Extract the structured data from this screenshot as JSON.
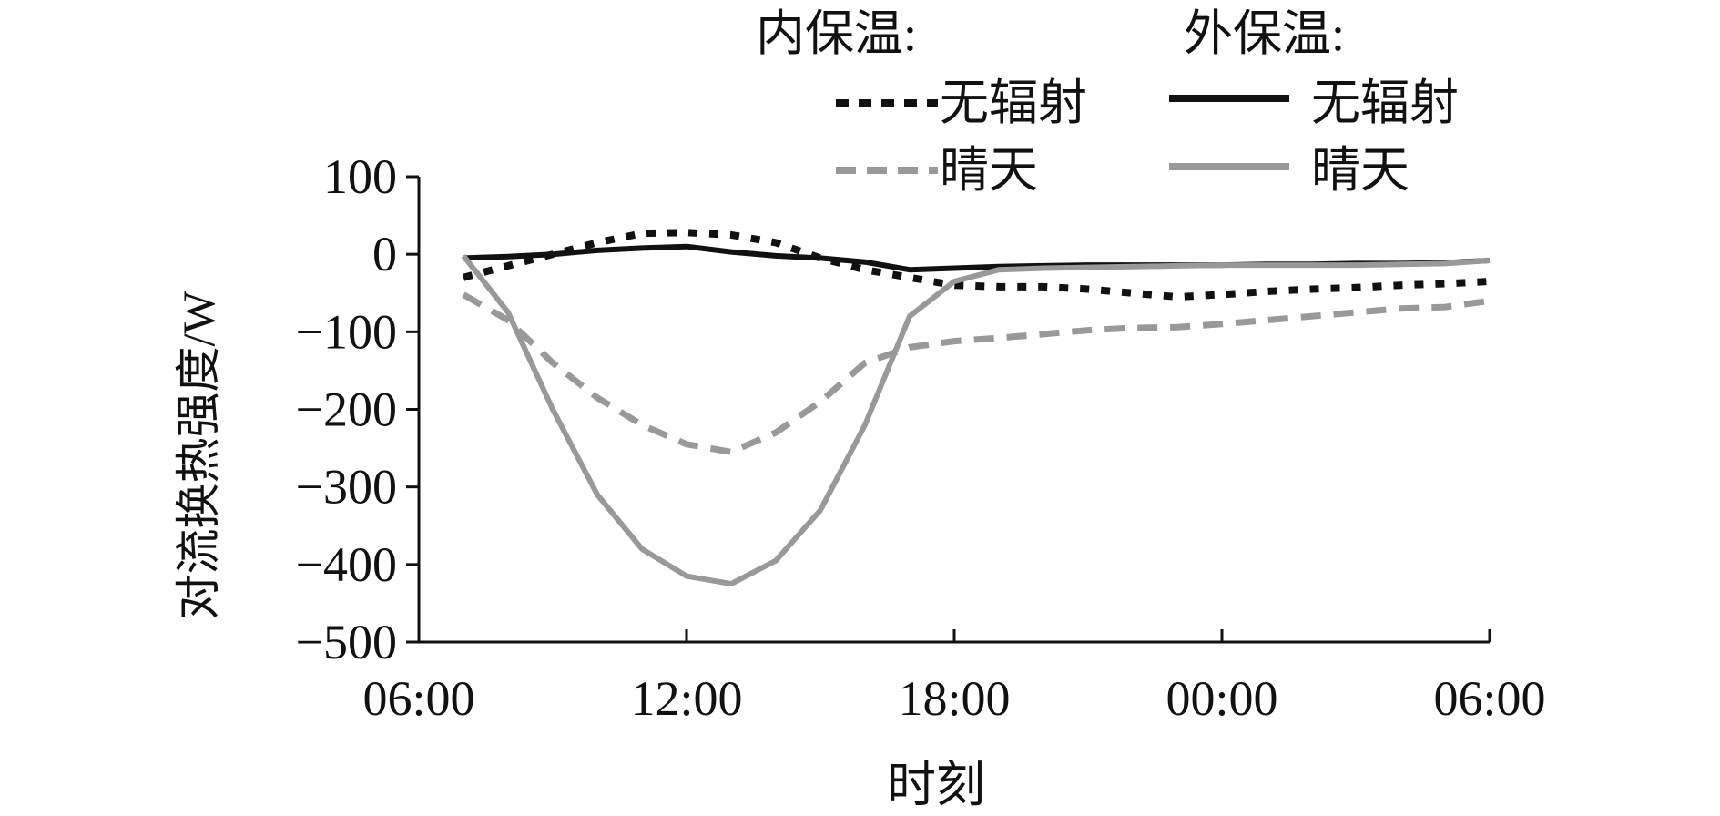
{
  "chart_data": {
    "type": "line",
    "title": "",
    "xlabel": "时刻",
    "ylabel": "对流换热强度/W",
    "xlim": [
      0,
      24
    ],
    "ylim": [
      -500,
      100
    ],
    "yticks": [
      100,
      0,
      -100,
      -200,
      -300,
      -400,
      -500
    ],
    "ytick_labels": [
      "100",
      "0",
      "−100",
      "−200",
      "−300",
      "−400",
      "−500"
    ],
    "xticks": [
      0,
      6,
      12,
      18,
      24
    ],
    "xtick_labels": [
      "06:00",
      "12:00",
      "18:00",
      "00:00",
      "06:00"
    ],
    "grid": false,
    "legend": {
      "placement": "top-right",
      "group_inner": "内保温:",
      "group_outer": "外保温:",
      "items": [
        {
          "label": "无辐射",
          "series": 0
        },
        {
          "label": "晴天",
          "series": 1
        },
        {
          "label": "无辐射",
          "series": 2
        },
        {
          "label": "晴天",
          "series": 3
        }
      ]
    },
    "series": [
      {
        "group": "内保温",
        "label": "无辐射",
        "color": "#111111",
        "dash": "dotted",
        "x": [
          1,
          2,
          3,
          4,
          5,
          6,
          7,
          8,
          9,
          10,
          11,
          12,
          13,
          14,
          15,
          16,
          17,
          18,
          19,
          20,
          21,
          22,
          23,
          24
        ],
        "y": [
          -30,
          -15,
          0,
          15,
          27,
          28,
          25,
          15,
          -5,
          -20,
          -30,
          -40,
          -42,
          -42,
          -45,
          -50,
          -55,
          -52,
          -48,
          -45,
          -43,
          -40,
          -38,
          -35
        ]
      },
      {
        "group": "内保温",
        "label": "晴天",
        "color": "#999999",
        "dash": "dashed",
        "x": [
          1,
          2,
          3,
          4,
          5,
          6,
          7,
          8,
          9,
          10,
          11,
          12,
          13,
          14,
          15,
          16,
          17,
          18,
          19,
          20,
          21,
          22,
          23,
          24
        ],
        "y": [
          -52,
          -85,
          -140,
          -185,
          -220,
          -245,
          -255,
          -230,
          -190,
          -140,
          -120,
          -112,
          -108,
          -103,
          -98,
          -95,
          -94,
          -90,
          -85,
          -80,
          -75,
          -70,
          -68,
          -60
        ]
      },
      {
        "group": "外保温",
        "label": "无辐射",
        "color": "#111111",
        "dash": "solid",
        "x": [
          1,
          2,
          3,
          4,
          5,
          6,
          7,
          8,
          9,
          10,
          11,
          12,
          13,
          14,
          15,
          16,
          17,
          18,
          19,
          20,
          21,
          22,
          23,
          24
        ],
        "y": [
          -5,
          -3,
          0,
          5,
          8,
          10,
          3,
          -2,
          -5,
          -10,
          -20,
          -18,
          -16,
          -15,
          -14,
          -14,
          -14,
          -14,
          -13,
          -13,
          -12,
          -12,
          -11,
          -8
        ]
      },
      {
        "group": "外保温",
        "label": "晴天",
        "color": "#999999",
        "dash": "solid",
        "x": [
          1,
          2,
          3,
          4,
          5,
          6,
          7,
          8,
          9,
          10,
          11,
          12,
          13,
          14,
          15,
          16,
          17,
          18,
          19,
          20,
          21,
          22,
          23,
          24
        ],
        "y": [
          -2,
          -75,
          -200,
          -310,
          -380,
          -415,
          -425,
          -395,
          -330,
          -220,
          -80,
          -35,
          -20,
          -18,
          -17,
          -16,
          -15,
          -14,
          -14,
          -14,
          -14,
          -13,
          -12,
          -8
        ]
      }
    ]
  }
}
